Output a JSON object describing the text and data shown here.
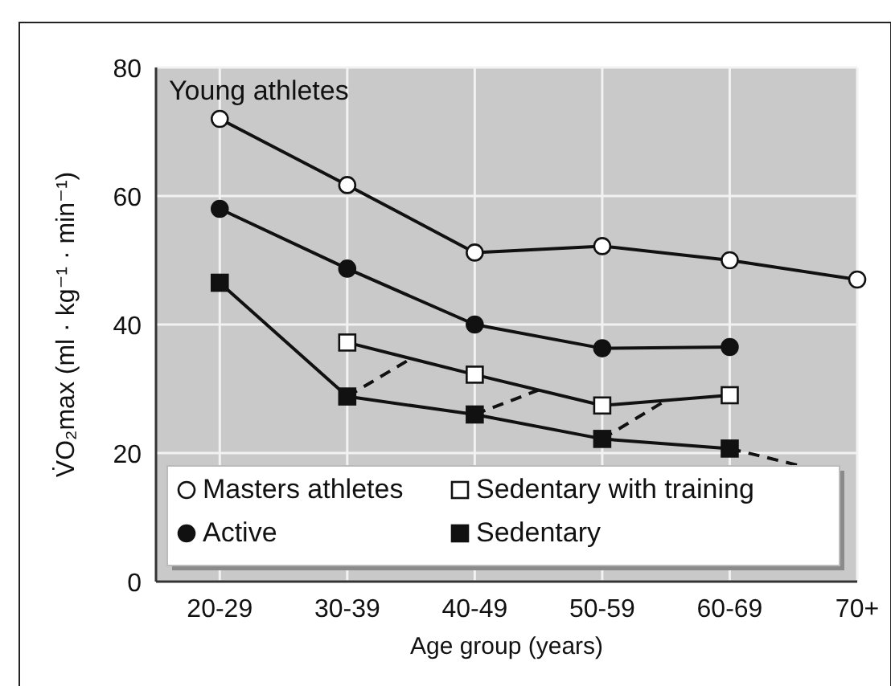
{
  "chart_data": {
    "type": "line",
    "ylabel": "V̇O₂max (ml · kg⁻¹ · min⁻¹)",
    "xlabel": "Age group (years)",
    "annotations": [
      "Young athletes"
    ],
    "categories": [
      "20-29",
      "30-39",
      "40-49",
      "50-59",
      "60-69",
      "70+"
    ],
    "ylim": [
      0,
      80
    ],
    "yticks": [
      0,
      20,
      40,
      60,
      80
    ],
    "grid": true,
    "legend": "bottom",
    "series": [
      {
        "name": "Masters athletes",
        "color": "#ffffff",
        "marker": "circle",
        "values": [
          72,
          61.7,
          51.2,
          52.2,
          50,
          47
        ]
      },
      {
        "name": "Sedentary with training",
        "color": "#ffffff",
        "marker": "square",
        "values": [
          null,
          37.2,
          32.2,
          27.4,
          29,
          null
        ]
      },
      {
        "name": "Active",
        "color": "#111111",
        "marker": "circle",
        "values": [
          58,
          48.7,
          40,
          36.3,
          36.5,
          null
        ]
      },
      {
        "name": "Sedentary",
        "color": "#111111",
        "marker": "square",
        "values": [
          46.5,
          28.8,
          26,
          22.2,
          20.7,
          null
        ]
      }
    ]
  }
}
